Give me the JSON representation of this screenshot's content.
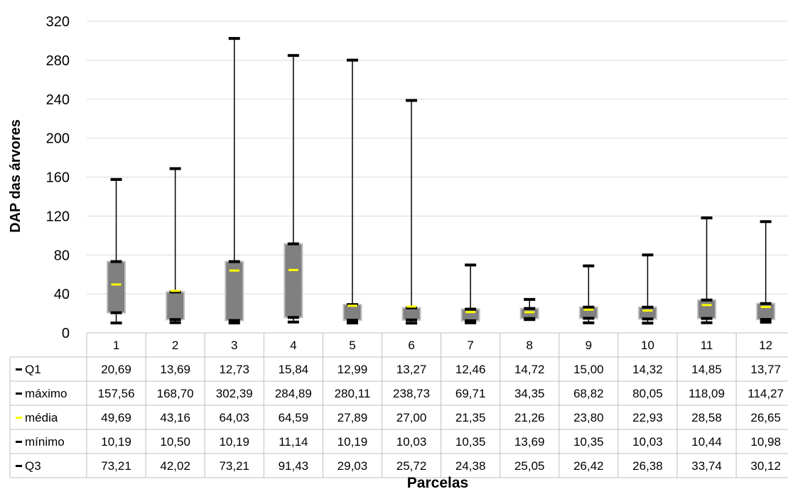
{
  "chart_data": {
    "type": "boxplot",
    "ylabel": "DAP das árvores",
    "xlabel": "Parcelas",
    "ylim": [
      0,
      320
    ],
    "yticks": [
      0,
      40,
      80,
      120,
      160,
      200,
      240,
      280,
      320
    ],
    "grid": true,
    "categories": [
      "1",
      "2",
      "3",
      "4",
      "5",
      "6",
      "7",
      "8",
      "9",
      "10",
      "11",
      "12"
    ],
    "series": [
      {
        "name": "Q1",
        "color": "#000000",
        "labels": [
          "20,69",
          "13,69",
          "12,73",
          "15,84",
          "12,99",
          "13,27",
          "12,46",
          "14,72",
          "15,00",
          "14,32",
          "14,85",
          "13,77"
        ],
        "values": [
          20.69,
          13.69,
          12.73,
          15.84,
          12.99,
          13.27,
          12.46,
          14.72,
          15.0,
          14.32,
          14.85,
          13.77
        ]
      },
      {
        "name": "máximo",
        "color": "#000000",
        "labels": [
          "157,56",
          "168,70",
          "302,39",
          "284,89",
          "280,11",
          "238,73",
          "69,71",
          "34,35",
          "68,82",
          "80,05",
          "118,09",
          "114,27"
        ],
        "values": [
          157.56,
          168.7,
          302.39,
          284.89,
          280.11,
          238.73,
          69.71,
          34.35,
          68.82,
          80.05,
          118.09,
          114.27
        ]
      },
      {
        "name": "média",
        "color": "#FFFF00",
        "labels": [
          "49,69",
          "43,16",
          "64,03",
          "64,59",
          "27,89",
          "27,00",
          "21,35",
          "21,26",
          "23,80",
          "22,93",
          "28,58",
          "26,65"
        ],
        "values": [
          49.69,
          43.16,
          64.03,
          64.59,
          27.89,
          27.0,
          21.35,
          21.26,
          23.8,
          22.93,
          28.58,
          26.65
        ]
      },
      {
        "name": "mínimo",
        "color": "#000000",
        "labels": [
          "10,19",
          "10,50",
          "10,19",
          "11,14",
          "10,19",
          "10,03",
          "10,35",
          "13,69",
          "10,35",
          "10,03",
          "10,44",
          "10,98"
        ],
        "values": [
          10.19,
          10.5,
          10.19,
          11.14,
          10.19,
          10.03,
          10.35,
          13.69,
          10.35,
          10.03,
          10.44,
          10.98
        ]
      },
      {
        "name": "Q3",
        "color": "#000000",
        "labels": [
          "73,21",
          "42,02",
          "73,21",
          "91,43",
          "29,03",
          "25,72",
          "24,38",
          "25,05",
          "26,42",
          "26,38",
          "33,74",
          "30,12"
        ],
        "values": [
          73.21,
          42.02,
          73.21,
          91.43,
          29.03,
          25.72,
          24.38,
          25.05,
          26.42,
          26.38,
          33.74,
          30.12
        ]
      }
    ],
    "box_fill": "#808080",
    "box_edge": "#BFBFBF",
    "gridline_color": "#D9D9D9"
  }
}
